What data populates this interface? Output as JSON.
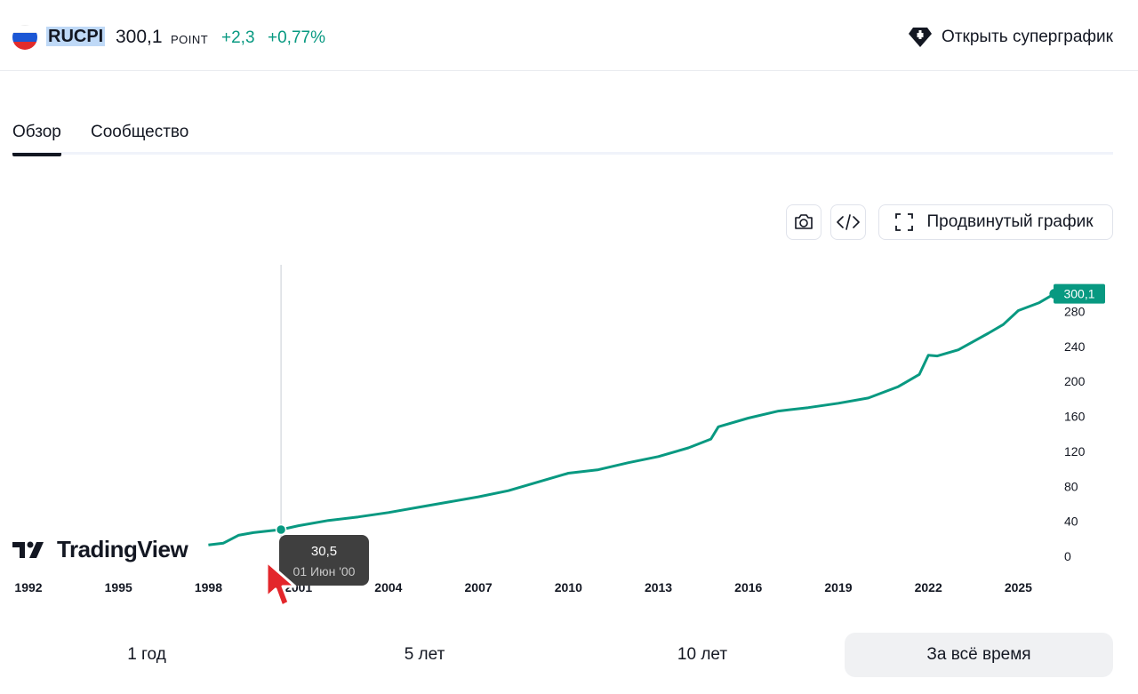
{
  "header": {
    "symbol": "RUCPI",
    "price": "300,1",
    "unit": "POINT",
    "change": "+2,3",
    "change_percent": "+0,77%",
    "super_chart_label": "Открыть суперграфик"
  },
  "tabs": [
    {
      "label": "Обзор",
      "active": true
    },
    {
      "label": "Сообщество",
      "active": false
    }
  ],
  "toolbar": {
    "camera_icon": "camera-icon",
    "embed_icon": "code-icon",
    "advanced_label": "Продвинутый график"
  },
  "logo_text": "TradingView",
  "tooltip": {
    "value": "30,5",
    "date": "01 Июн '00"
  },
  "ranges": [
    {
      "label": "1 год",
      "active": false
    },
    {
      "label": "5 лет",
      "active": false
    },
    {
      "label": "10 лет",
      "active": false
    },
    {
      "label": "За всё время",
      "active": true
    }
  ],
  "colors": {
    "accent": "#089981",
    "text": "#131722"
  },
  "chart_data": {
    "type": "line",
    "series": [
      {
        "points": [
          [
            1998.0,
            13
          ],
          [
            1998.5,
            15
          ],
          [
            1999.0,
            24
          ],
          [
            1999.5,
            27
          ],
          [
            2000.0,
            29
          ],
          [
            2000.42,
            30.5
          ],
          [
            2001.0,
            35
          ],
          [
            2002.0,
            41
          ],
          [
            2003.0,
            45
          ],
          [
            2004.0,
            50
          ],
          [
            2005.0,
            56
          ],
          [
            2006.0,
            62
          ],
          [
            2007.0,
            68
          ],
          [
            2008.0,
            75
          ],
          [
            2009.0,
            85
          ],
          [
            2010.0,
            95
          ],
          [
            2011.0,
            99
          ],
          [
            2012.0,
            107
          ],
          [
            2013.0,
            114
          ],
          [
            2014.0,
            124
          ],
          [
            2014.75,
            134
          ],
          [
            2015.0,
            148
          ],
          [
            2016.0,
            158
          ],
          [
            2017.0,
            166
          ],
          [
            2018.0,
            170
          ],
          [
            2019.0,
            175
          ],
          [
            2020.0,
            181
          ],
          [
            2021.0,
            194
          ],
          [
            2021.7,
            208
          ],
          [
            2022.0,
            230
          ],
          [
            2022.3,
            229
          ],
          [
            2023.0,
            236
          ],
          [
            2024.0,
            255
          ],
          [
            2024.5,
            265
          ],
          [
            2025.0,
            281
          ],
          [
            2025.7,
            290
          ],
          [
            2026.2,
            300.1
          ]
        ]
      }
    ],
    "x_ticks": [
      "1992",
      "1995",
      "1998",
      "2001",
      "2004",
      "2007",
      "2010",
      "2013",
      "2016",
      "2019",
      "2022",
      "2025"
    ],
    "y_ticks": [
      "0",
      "40",
      "80",
      "120",
      "160",
      "200",
      "240",
      "280"
    ],
    "last_value_label": "300,1",
    "xlim": [
      1992,
      2026.5
    ],
    "ylim": [
      0,
      315
    ],
    "grid": false,
    "crosshair_x": 2000.42
  }
}
